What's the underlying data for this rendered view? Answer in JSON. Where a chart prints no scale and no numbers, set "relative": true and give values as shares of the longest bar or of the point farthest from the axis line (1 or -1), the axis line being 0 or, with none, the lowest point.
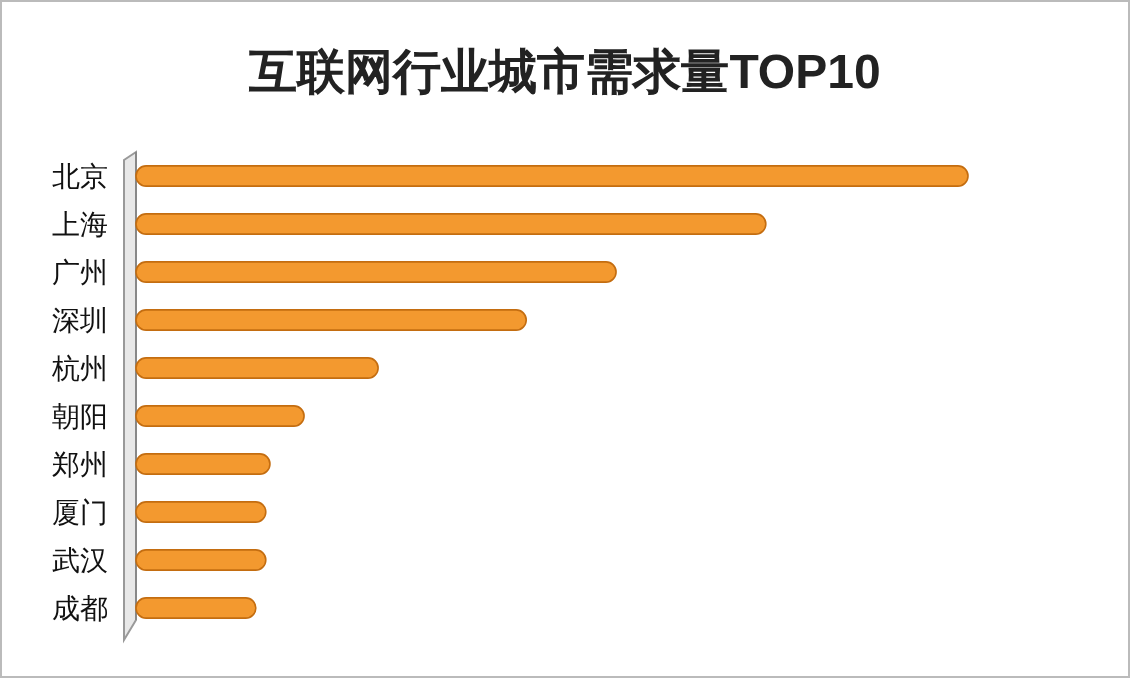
{
  "chart_data": {
    "type": "bar",
    "orientation": "horizontal",
    "relative": true,
    "title": "互联网行业城市需求量TOP10",
    "categories": [
      "北京",
      "上海",
      "广州",
      "深圳",
      "杭州",
      "朝阳",
      "郑州",
      "厦门",
      "武汉",
      "成都"
    ],
    "values": [
      1,
      0.757,
      0.577,
      0.469,
      0.291,
      0.202,
      0.161,
      0.156,
      0.156,
      0.144
    ],
    "color": "#f3992f"
  }
}
